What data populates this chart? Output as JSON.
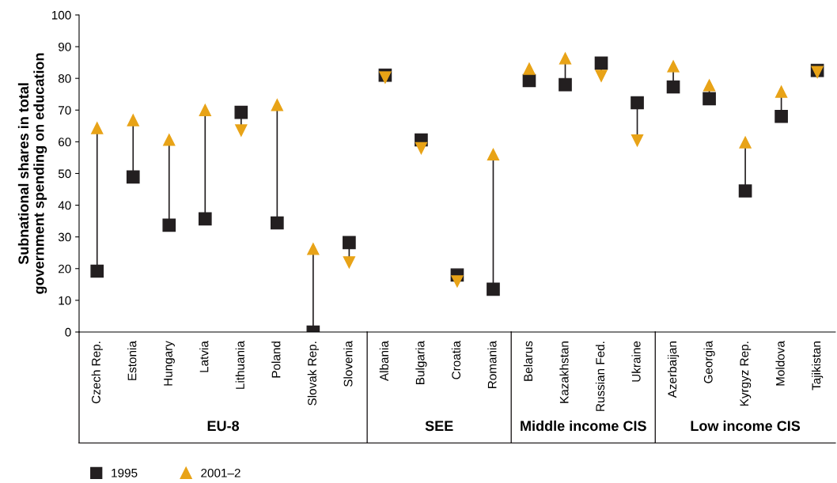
{
  "chart_data": [
    {
      "type": "scatter",
      "ylabel": "Subnational shares in total\ngovernment spending on education",
      "xlabel": "EU-8",
      "categories": [
        "Czech Rep.",
        "Estonia",
        "Hungary",
        "Latvia",
        "Lithuania",
        "Poland",
        "Slovak Rep.",
        "Slovenia"
      ],
      "series": [
        {
          "name": "1995",
          "color": "#231f20",
          "marker": "square",
          "values": [
            19.2,
            48.9,
            33.7,
            35.7,
            69.3,
            34.4,
            0,
            28.2
          ]
        },
        {
          "name": "2001–2",
          "color": "#e8a317",
          "marker": "triangle",
          "values": [
            64.3,
            66.8,
            60.6,
            70,
            63.6,
            71.6,
            26.2,
            22
          ]
        }
      ],
      "ylim": [
        0,
        100
      ],
      "yticks": [
        0,
        10,
        20,
        30,
        40,
        50,
        60,
        70,
        80,
        90,
        100
      ],
      "legend": "bottom left"
    },
    {
      "type": "scatter",
      "xlabel": "SEE",
      "categories": [
        "Albania",
        "Bulgaria",
        "Croatia",
        "Romania"
      ],
      "series": [
        {
          "color": "#231f20",
          "marker": "square",
          "values": [
            81,
            60.6,
            18,
            13.5
          ]
        },
        {
          "color": "#e8a317",
          "marker": "triangle",
          "values": [
            80.3,
            58,
            16,
            56
          ]
        }
      ],
      "ylim": [
        0,
        100
      ],
      "tick_labels": "x"
    },
    {
      "type": "scatter",
      "xlabel": "Middle income CIS",
      "categories": [
        "Belarus",
        "Kazakhstan",
        "Russian Fed.",
        "Ukraine"
      ],
      "series": [
        {
          "color": "#231f20",
          "marker": "square",
          "values": [
            79.3,
            78,
            84.8,
            72.3
          ]
        },
        {
          "color": "#e8a317",
          "marker": "triangle",
          "values": [
            83,
            86.3,
            80.8,
            60.4
          ]
        }
      ],
      "ylim": [
        0,
        100
      ],
      "tick_labels": "x"
    },
    {
      "type": "scatter",
      "xlabel": "Low income CIS",
      "categories": [
        "Azerbaijan",
        "Georgia",
        "Kyrgyz Rep.",
        "Moldova",
        "Tajikistan"
      ],
      "series": [
        {
          "color": "#231f20",
          "marker": "square",
          "values": [
            77.3,
            73.6,
            44.5,
            68,
            82.5
          ]
        },
        {
          "color": "#e8a317",
          "marker": "triangle",
          "values": [
            83.8,
            77.8,
            59.8,
            75.8,
            82
          ]
        }
      ],
      "ylim": [
        0,
        100
      ],
      "tick_labels": "x"
    }
  ]
}
